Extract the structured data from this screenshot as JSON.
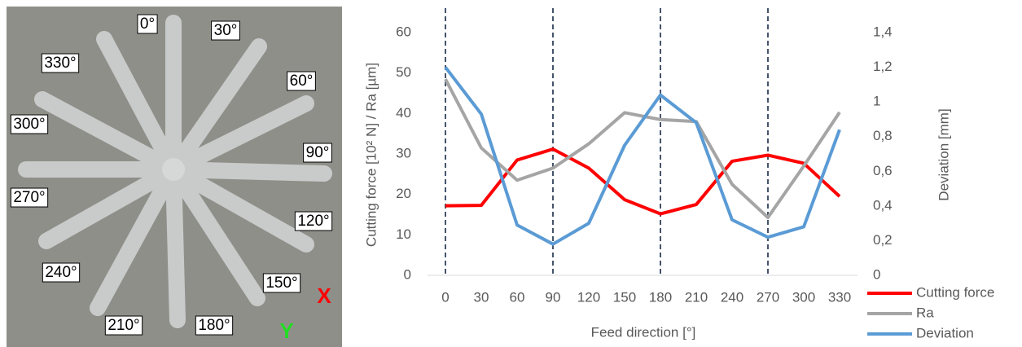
{
  "photo": {
    "labels": [
      "0°",
      "30°",
      "60°",
      "90°",
      "120°",
      "150°",
      "180°",
      "210°",
      "240°",
      "270°",
      "300°",
      "330°"
    ],
    "x_axis": "X",
    "y_axis": "Y"
  },
  "chart_data": {
    "type": "line",
    "x_title": "Feed direction [°]",
    "y_title": "Cutting force [10² N] / Ra [µm]",
    "y2_title": "Deviation [mm]",
    "categories": [
      0,
      30,
      60,
      90,
      120,
      150,
      180,
      210,
      240,
      270,
      300,
      330
    ],
    "series": [
      {
        "name": "Cutting force",
        "color": "#ff0000",
        "values": [
          17.2,
          17.3,
          28.5,
          31.2,
          26.5,
          18.7,
          15.2,
          17.5,
          28.2,
          29.7,
          27.7,
          19.5
        ]
      },
      {
        "name": "Ra",
        "color": "#a5a5a5",
        "values": [
          48.5,
          31.5,
          23.5,
          26.5,
          32.5,
          40.2,
          38.5,
          38,
          22.5,
          14.3,
          27,
          40.3
        ]
      },
      {
        "name": "Deviation",
        "color": "#5b9bd5",
        "axis": "y2",
        "values": [
          1.2,
          0.93,
          0.29,
          0.18,
          0.3,
          0.75,
          1.04,
          0.88,
          0.32,
          0.22,
          0.28,
          0.84
        ]
      }
    ],
    "ylim": [
      0,
      60
    ],
    "yticks": [
      0,
      10,
      20,
      30,
      40,
      50,
      60
    ],
    "y2lim": [
      0,
      1.4
    ],
    "y2ticks": [
      0,
      {
        "value": 0.2,
        "label": "0,2"
      },
      {
        "value": 0.4,
        "label": "0,4"
      },
      {
        "value": 0.6,
        "label": "0,6"
      },
      {
        "value": 0.8,
        "label": "0,8"
      },
      1,
      {
        "value": 1.2,
        "label": "1,2"
      },
      {
        "value": 1.4,
        "label": "1,4"
      }
    ],
    "vlines": [
      0,
      90,
      180,
      270
    ],
    "vline_color": "#44546a",
    "grid": false,
    "legend": "bottom-right"
  }
}
